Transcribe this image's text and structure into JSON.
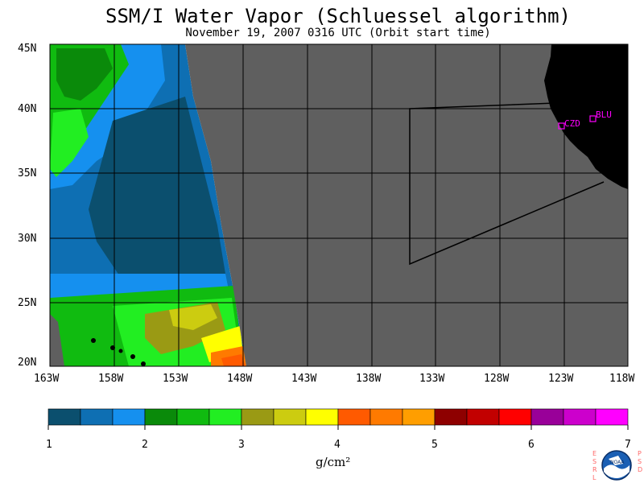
{
  "title": "SSM/I Water Vapor (Schluessel algorithm)",
  "subtitle": "November 19, 2007  0316 UTC  (Orbit start time)",
  "lat_labels": [
    "45N",
    "40N",
    "35N",
    "30N",
    "25N",
    "20N"
  ],
  "lon_labels": [
    "163W",
    "158W",
    "153W",
    "148W",
    "143W",
    "138W",
    "133W",
    "128W",
    "123W",
    "118W"
  ],
  "stations": [
    {
      "id": "CZD",
      "label": "CZD"
    },
    {
      "id": "BLU",
      "label": "BLU"
    }
  ],
  "colorbar": {
    "ticks": [
      "1",
      "2",
      "3",
      "4",
      "5",
      "6",
      "7"
    ],
    "units": "g/cm²",
    "colors": [
      "#0b4f6e",
      "#0e6fb3",
      "#1590ef",
      "#0a8a0a",
      "#10bb10",
      "#22ee22",
      "#9a9a14",
      "#cccc10",
      "#ffff00",
      "#ff5a00",
      "#ff7a00",
      "#ff9e00",
      "#8e0000",
      "#c20000",
      "#ff0000",
      "#990099",
      "#cc00cc",
      "#ff00ff"
    ]
  },
  "logo": {
    "left_text": "ESRL",
    "right_text": "PSD",
    "center_text": "NOAA"
  },
  "colors": {
    "no_data": "#5f5f5f",
    "land": "#000000",
    "station": "#ff00ff"
  }
}
